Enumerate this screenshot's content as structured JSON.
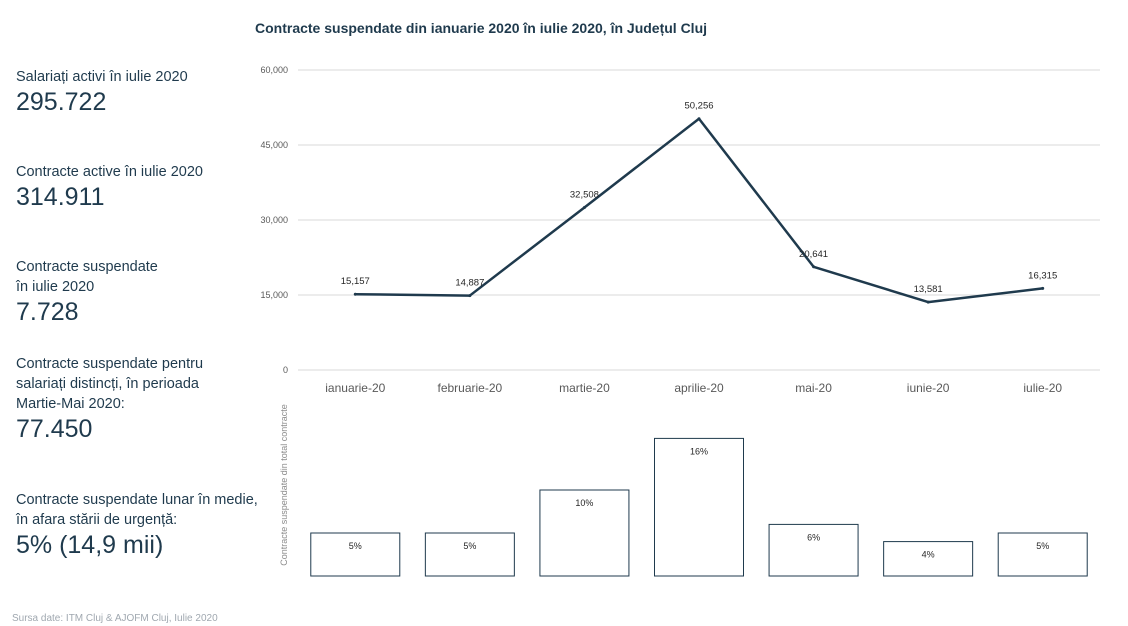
{
  "chart_title": "Contracte suspendate din ianuarie 2020 în iulie 2020, în Județul Cluj",
  "kpis": [
    {
      "label_lines": [
        "Salariați activi în iulie 2020"
      ],
      "value": "295.722"
    },
    {
      "label_lines": [
        "Contracte active în iulie 2020"
      ],
      "value": "314.911"
    },
    {
      "label_lines": [
        "Contracte suspendate",
        "în iulie 2020"
      ],
      "value": "7.728"
    },
    {
      "label_lines": [
        "Contracte suspendate pentru",
        "salariați distincți, în  perioada",
        "Martie-Mai 2020:"
      ],
      "value": "77.450"
    },
    {
      "label_lines": [
        "Contracte suspendate lunar în medie,",
        "în afara stării de urgență:"
      ],
      "value": "5% (14,9 mii)"
    }
  ],
  "source": "Sursa date: ITM Cluj & AJOFM Cluj, Iulie 2020",
  "colors": {
    "line": "#1f3a4d",
    "grid": "#d9d9d9",
    "axis_text": "#595959",
    "bar_stroke": "#1f3a4d"
  },
  "chart_data": [
    {
      "type": "line",
      "categories": [
        "ianuarie-20",
        "februarie-20",
        "martie-20",
        "aprilie-20",
        "mai-20",
        "iunie-20",
        "iulie-20"
      ],
      "values": [
        15157,
        14887,
        32508,
        50256,
        20641,
        13581,
        16315
      ],
      "data_labels": [
        "15,157",
        "14,887",
        "32,508",
        "50,256",
        "20,641",
        "13,581",
        "16,315"
      ],
      "ylim": [
        0,
        60000
      ],
      "yticks": [
        0,
        15000,
        30000,
        45000,
        60000
      ],
      "ytick_labels": [
        "0",
        "15,000",
        "30,000",
        "45,000",
        "60,000"
      ],
      "grid": true
    },
    {
      "type": "bar",
      "categories": [
        "ianuarie-20",
        "februarie-20",
        "martie-20",
        "aprilie-20",
        "mai-20",
        "iunie-20",
        "iulie-20"
      ],
      "values": [
        5,
        5,
        10,
        16,
        6,
        4,
        5
      ],
      "data_labels": [
        "5%",
        "5%",
        "10%",
        "16%",
        "6%",
        "4%",
        "5%"
      ],
      "ylabel": "Contracte suspendate din total contracte",
      "unit": "%"
    }
  ]
}
